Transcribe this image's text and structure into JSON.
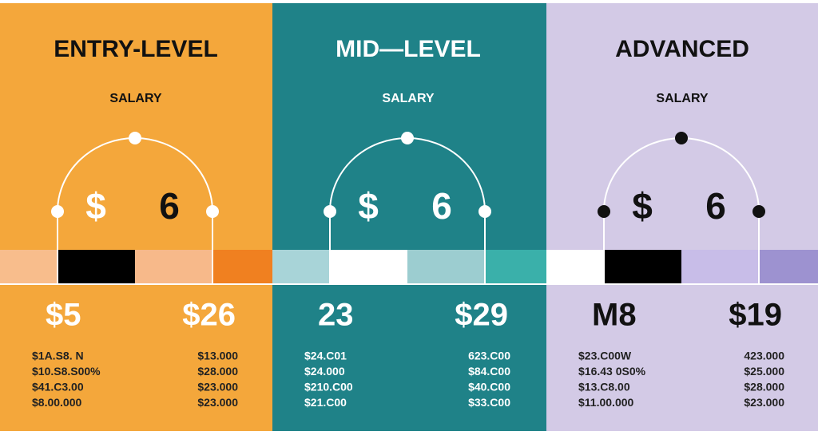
{
  "panels": [
    {
      "title": "ENTRY-LEVEL",
      "label": "SALARY",
      "symbol": "$",
      "digit": "6",
      "big_left": "$5",
      "big_right": "$26",
      "left_list": [
        "$1A.S8. N",
        "$10.S8.S00%",
        "$41.C3.00",
        "$8.00.000"
      ],
      "right_list": [
        "$13.000",
        "$28.000",
        "$23.000",
        "$23.000"
      ]
    },
    {
      "title": "MID—LEVEL",
      "label": "SALARY",
      "symbol": "$",
      "digit": "6",
      "big_left": "23",
      "big_right": "$29",
      "left_list": [
        "$24.C01",
        "$24.000",
        "$210.C00",
        "$21.C00"
      ],
      "right_list": [
        "623.C00",
        "$84.C00",
        "$40.C00",
        "$33.C00"
      ]
    },
    {
      "title": "ADVANCED",
      "label": "SALARY",
      "symbol": "$",
      "digit": "6",
      "big_left": "M8",
      "big_right": "$19",
      "left_list": [
        "$23.C00W",
        "$16.43 0S0%",
        "$13.C8.00",
        "$11.00.000"
      ],
      "right_list": [
        "423.000",
        "$25.000",
        "$28.000",
        "$23.000"
      ]
    }
  ]
}
